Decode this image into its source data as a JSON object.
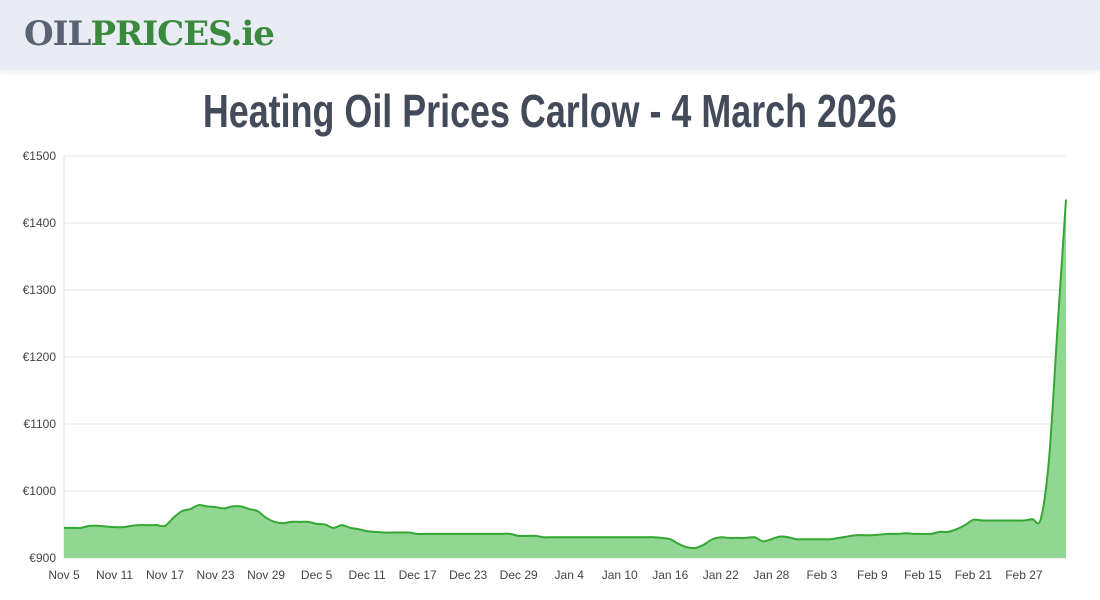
{
  "header": {
    "logo_part1": "OIL",
    "logo_part2": "PRICES.ie"
  },
  "page_title": "Heating Oil Prices Carlow - 4 March 2026",
  "chart_data": {
    "type": "area",
    "title": "Heating Oil Prices Carlow - 4 March 2026",
    "xlabel": "",
    "ylabel": "",
    "ylim": [
      900,
      1500
    ],
    "y_ticks": [
      "€900",
      "€1000",
      "€1100",
      "€1200",
      "€1300",
      "€1400",
      "€1500"
    ],
    "y_tick_values": [
      900,
      1000,
      1100,
      1200,
      1300,
      1400,
      1500
    ],
    "x_ticks": [
      "Nov 5",
      "Nov 11",
      "Nov 17",
      "Nov 23",
      "Nov 29",
      "Dec 5",
      "Dec 11",
      "Dec 17",
      "Dec 23",
      "Dec 29",
      "Jan 4",
      "Jan 10",
      "Jan 16",
      "Jan 22",
      "Jan 28",
      "Feb 3",
      "Feb 9",
      "Feb 15",
      "Feb 21",
      "Feb 27"
    ],
    "grid": true,
    "line_color": "#34a832",
    "fill_color": "#92d693",
    "x": [
      "Nov 5",
      "Nov 6",
      "Nov 7",
      "Nov 8",
      "Nov 9",
      "Nov 10",
      "Nov 11",
      "Nov 12",
      "Nov 13",
      "Nov 14",
      "Nov 15",
      "Nov 16",
      "Nov 17",
      "Nov 18",
      "Nov 19",
      "Nov 20",
      "Nov 21",
      "Nov 22",
      "Nov 23",
      "Nov 24",
      "Nov 25",
      "Nov 26",
      "Nov 27",
      "Nov 28",
      "Nov 29",
      "Nov 30",
      "Dec 1",
      "Dec 2",
      "Dec 3",
      "Dec 4",
      "Dec 5",
      "Dec 6",
      "Dec 7",
      "Dec 8",
      "Dec 9",
      "Dec 10",
      "Dec 11",
      "Dec 12",
      "Dec 13",
      "Dec 14",
      "Dec 15",
      "Dec 16",
      "Dec 17",
      "Dec 18",
      "Dec 19",
      "Dec 20",
      "Dec 21",
      "Dec 22",
      "Dec 23",
      "Dec 24",
      "Dec 25",
      "Dec 26",
      "Dec 27",
      "Dec 28",
      "Dec 29",
      "Dec 30",
      "Dec 31",
      "Jan 1",
      "Jan 2",
      "Jan 3",
      "Jan 4",
      "Jan 5",
      "Jan 6",
      "Jan 7",
      "Jan 8",
      "Jan 9",
      "Jan 10",
      "Jan 11",
      "Jan 12",
      "Jan 13",
      "Jan 14",
      "Jan 15",
      "Jan 16",
      "Jan 17",
      "Jan 18",
      "Jan 19",
      "Jan 20",
      "Jan 21",
      "Jan 22",
      "Jan 23",
      "Jan 24",
      "Jan 25",
      "Jan 26",
      "Jan 27",
      "Jan 28",
      "Jan 29",
      "Jan 30",
      "Jan 31",
      "Feb 1",
      "Feb 2",
      "Feb 3",
      "Feb 4",
      "Feb 5",
      "Feb 6",
      "Feb 7",
      "Feb 8",
      "Feb 9",
      "Feb 10",
      "Feb 11",
      "Feb 12",
      "Feb 13",
      "Feb 14",
      "Feb 15",
      "Feb 16",
      "Feb 17",
      "Feb 18",
      "Feb 19",
      "Feb 20",
      "Feb 21",
      "Feb 22",
      "Feb 23",
      "Feb 24",
      "Feb 25",
      "Feb 26",
      "Feb 27",
      "Feb 28",
      "Mar 1",
      "Mar 2",
      "Mar 3",
      "Mar 4"
    ],
    "y": [
      945,
      945,
      945,
      948,
      948,
      947,
      946,
      946,
      948,
      949,
      949,
      949,
      948,
      960,
      970,
      973,
      979,
      977,
      976,
      974,
      977,
      977,
      973,
      970,
      960,
      954,
      952,
      954,
      954,
      954,
      951,
      950,
      945,
      949,
      945,
      943,
      940,
      939,
      938,
      938,
      938,
      938,
      936,
      936,
      936,
      936,
      936,
      936,
      936,
      936,
      936,
      936,
      936,
      936,
      933,
      933,
      933,
      931,
      931,
      931,
      931,
      931,
      931,
      931,
      931,
      931,
      931,
      931,
      931,
      931,
      931,
      930,
      928,
      921,
      916,
      915,
      920,
      928,
      931,
      930,
      930,
      930,
      931,
      925,
      928,
      932,
      931,
      928,
      928,
      928,
      928,
      928,
      930,
      932,
      934,
      934,
      934,
      935,
      936,
      936,
      937,
      936,
      936,
      936,
      939,
      939,
      943,
      949,
      957,
      956,
      956,
      956,
      956,
      956,
      956,
      958,
      958,
      1050,
      1245,
      1435
    ]
  }
}
